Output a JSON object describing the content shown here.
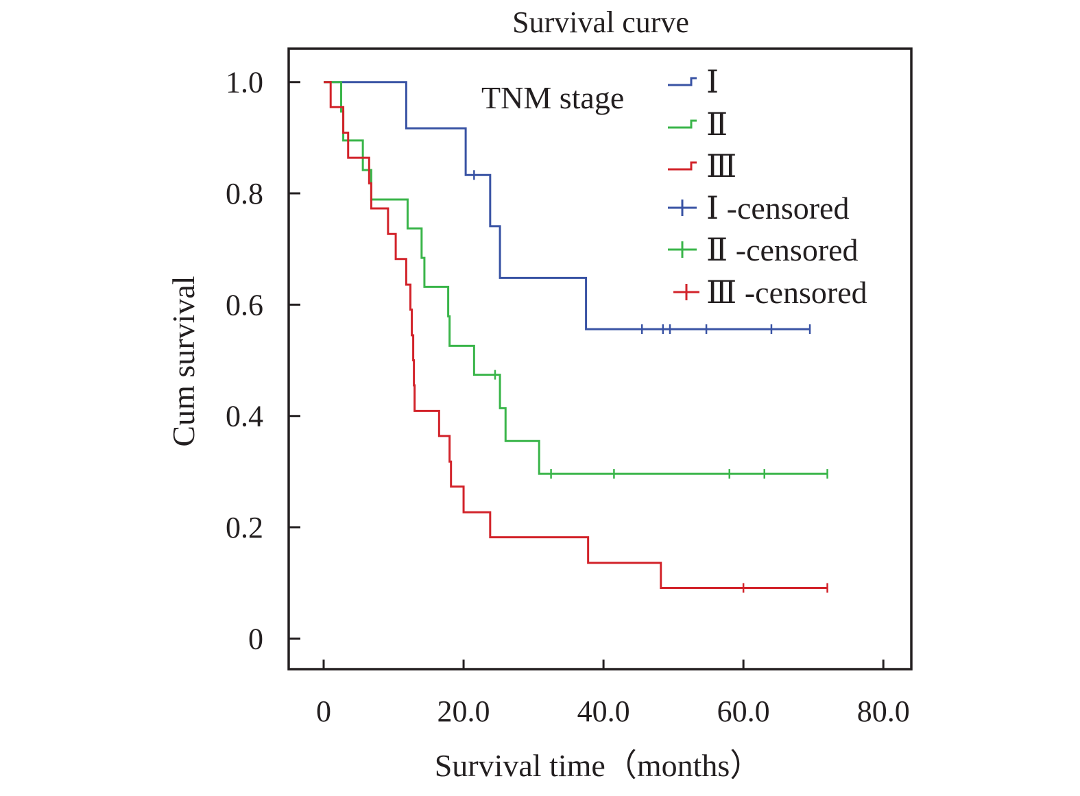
{
  "chart_data": {
    "type": "line",
    "title": "Survival curve",
    "xlabel": "Survival time（months）",
    "ylabel": "Cum survival",
    "xlim": [
      -5,
      84
    ],
    "ylim": [
      -0.055,
      1.06
    ],
    "xticks": [
      0,
      20,
      40,
      60,
      80
    ],
    "xtick_labels": [
      "0",
      "20.0",
      "40.0",
      "60.0",
      "80.0"
    ],
    "yticks": [
      0,
      0.2,
      0.4,
      0.6,
      0.8,
      1.0
    ],
    "ytick_labels": [
      "0",
      "0.2",
      "0.4",
      "0.6",
      "0.8",
      "1.0"
    ],
    "grid": false,
    "legend_title": "TNM stage",
    "legend_position": "top-right",
    "series": [
      {
        "name": "Ⅰ",
        "color": "#3953a4",
        "steps": [
          [
            0,
            1.0
          ],
          [
            11.8,
            0.917
          ],
          [
            20.3,
            0.833
          ],
          [
            23.8,
            0.741
          ],
          [
            25.2,
            0.648
          ],
          [
            37.5,
            0.556
          ],
          [
            69.5,
            0.556
          ]
        ],
        "censored": [
          [
            21.5,
            0.833
          ],
          [
            45.5,
            0.556
          ],
          [
            48.5,
            0.556
          ],
          [
            49.5,
            0.556
          ],
          [
            54.7,
            0.556
          ],
          [
            64,
            0.556
          ],
          [
            69.5,
            0.556
          ]
        ]
      },
      {
        "name": "Ⅱ",
        "color": "#3ab54a",
        "steps": [
          [
            0,
            1.0
          ],
          [
            2.5,
            0.947
          ],
          [
            2.8,
            0.895
          ],
          [
            5.6,
            0.842
          ],
          [
            6.8,
            0.789
          ],
          [
            12,
            0.737
          ],
          [
            14,
            0.684
          ],
          [
            14.4,
            0.632
          ],
          [
            17.8,
            0.579
          ],
          [
            18,
            0.526
          ],
          [
            21.5,
            0.474
          ],
          [
            25.2,
            0.414
          ],
          [
            26,
            0.355
          ],
          [
            30.8,
            0.296
          ],
          [
            72,
            0.296
          ]
        ],
        "censored": [
          [
            24.5,
            0.474
          ],
          [
            32.5,
            0.296
          ],
          [
            41.5,
            0.296
          ],
          [
            58,
            0.296
          ],
          [
            63,
            0.296
          ],
          [
            72,
            0.296
          ]
        ]
      },
      {
        "name": "Ⅲ",
        "color": "#d2232a",
        "steps": [
          [
            0,
            1.0
          ],
          [
            1,
            0.955
          ],
          [
            2.8,
            0.909
          ],
          [
            3.5,
            0.864
          ],
          [
            6.5,
            0.818
          ],
          [
            6.8,
            0.773
          ],
          [
            9.2,
            0.727
          ],
          [
            10.3,
            0.682
          ],
          [
            11.8,
            0.636
          ],
          [
            12.4,
            0.591
          ],
          [
            12.6,
            0.545
          ],
          [
            12.8,
            0.5
          ],
          [
            12.9,
            0.455
          ],
          [
            13,
            0.409
          ],
          [
            16.5,
            0.364
          ],
          [
            18,
            0.318
          ],
          [
            18.2,
            0.273
          ],
          [
            20,
            0.227
          ],
          [
            23.8,
            0.182
          ],
          [
            37.8,
            0.136
          ],
          [
            48.2,
            0.091
          ],
          [
            72,
            0.091
          ]
        ],
        "censored": [
          [
            60,
            0.091
          ],
          [
            72,
            0.091
          ]
        ]
      }
    ],
    "legend_entries": [
      {
        "label": "Ⅰ",
        "color": "#3953a4",
        "marker": "step"
      },
      {
        "label": "Ⅱ",
        "color": "#3ab54a",
        "marker": "step"
      },
      {
        "label": "Ⅲ",
        "color": "#d2232a",
        "marker": "step"
      },
      {
        "label": "Ⅰ -censored",
        "color": "#3953a4",
        "marker": "plus"
      },
      {
        "label": "Ⅱ -censored",
        "color": "#3ab54a",
        "marker": "plus"
      },
      {
        "label": "Ⅲ -censored",
        "color": "#d2232a",
        "marker": "plus"
      }
    ]
  }
}
